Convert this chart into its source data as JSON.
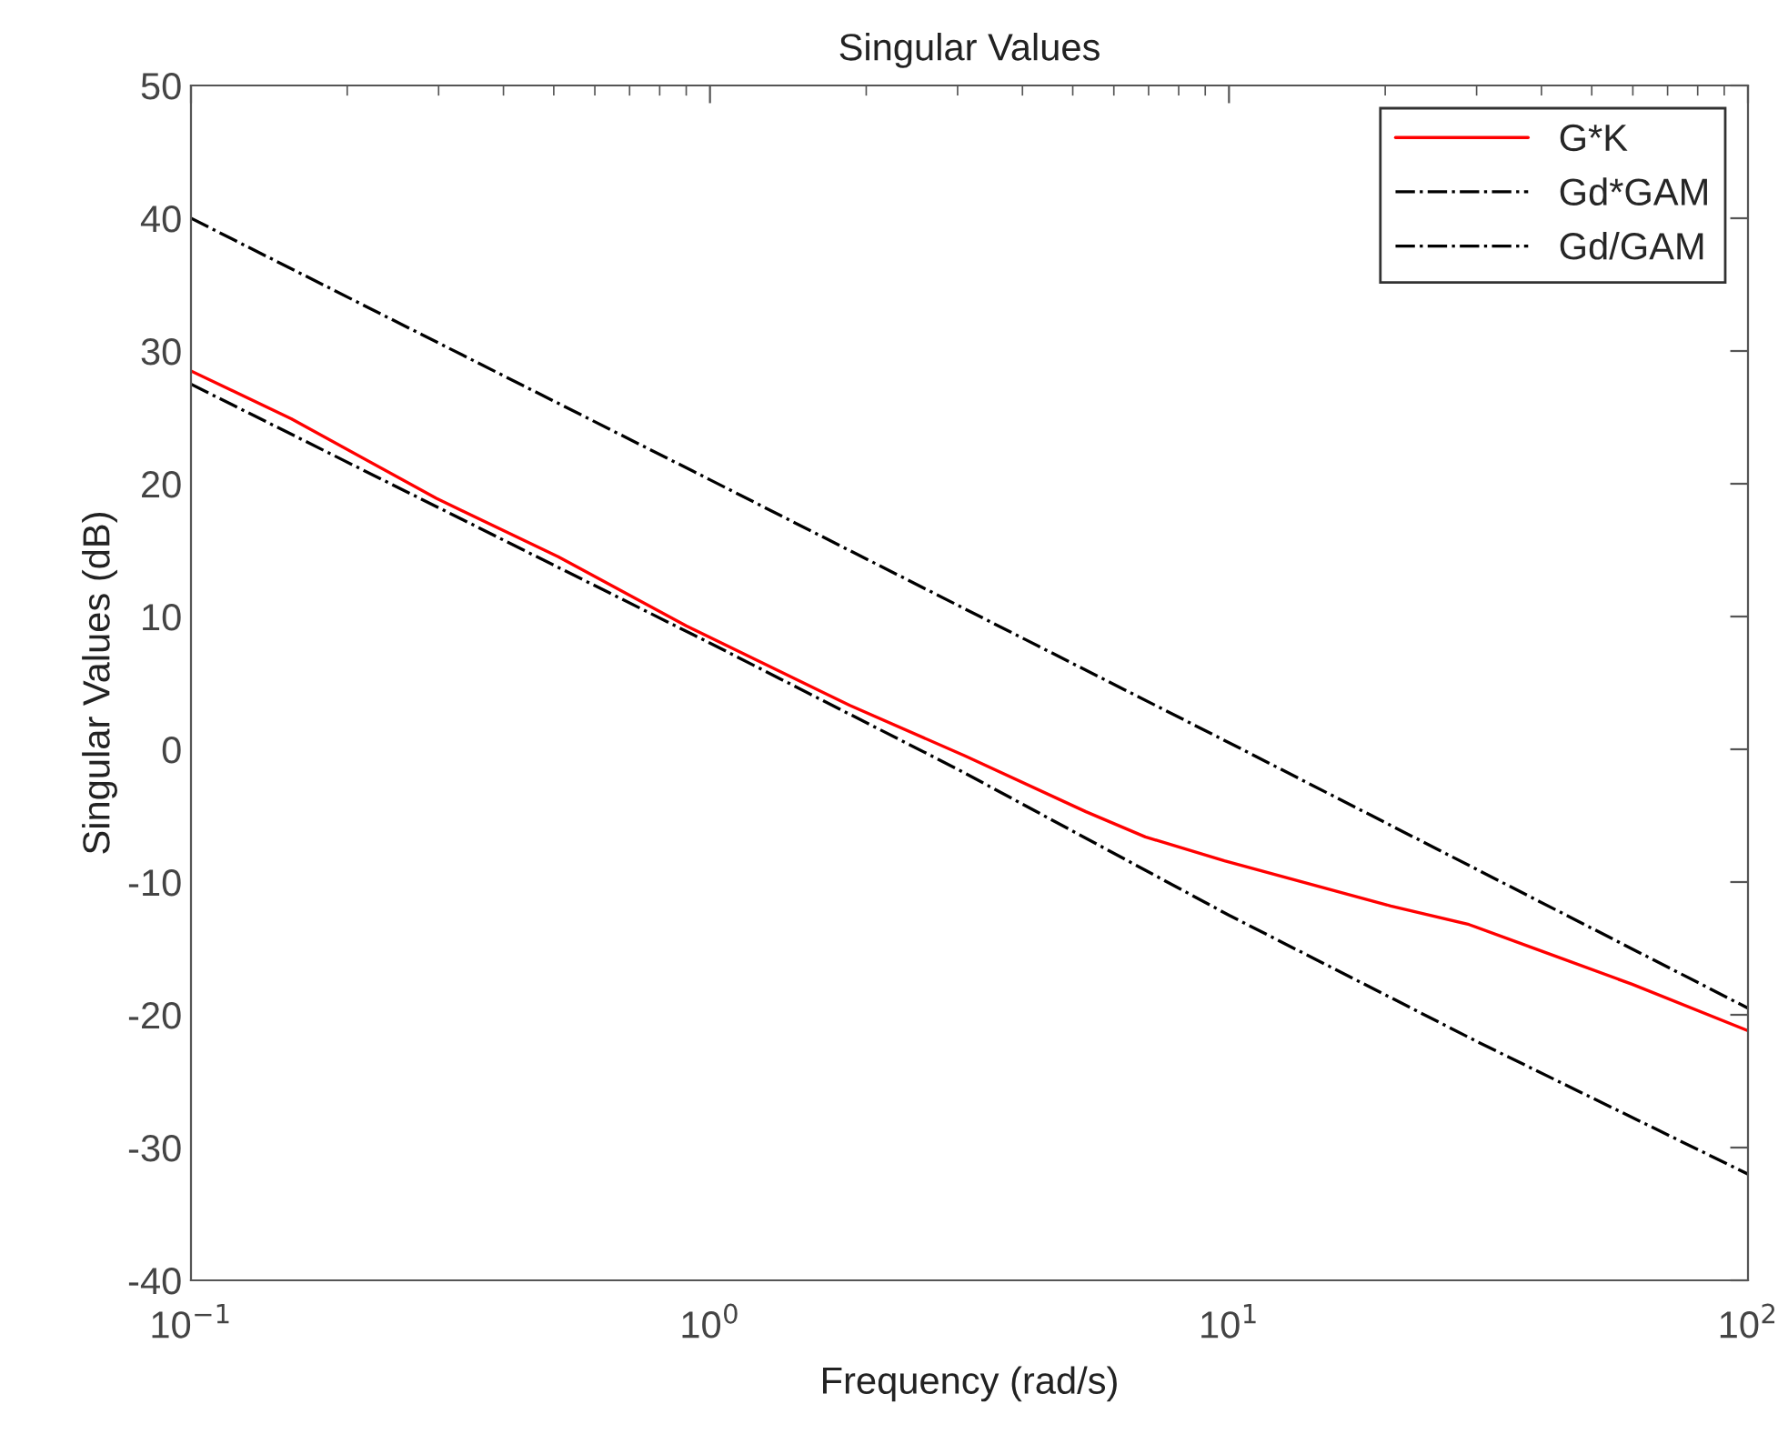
{
  "chart_data": {
    "type": "line",
    "title": "Singular Values",
    "xlabel": "Frequency (rad/s)",
    "ylabel": "Singular Values (dB)",
    "log": "x",
    "grid": false,
    "legend": "top right",
    "xlim": [
      0.1,
      100
    ],
    "xticks": [
      {
        "value": 0.1,
        "label": "10$^{−1}$"
      },
      {
        "value": 1,
        "label": "10$^{0}$"
      },
      {
        "value": 10,
        "label": "10$^{1}$"
      },
      {
        "value": 100,
        "label": "10$^{2}$"
      }
    ],
    "ylim": [
      -40,
      50
    ],
    "yticks": [
      -40,
      -30,
      -20,
      -10,
      0,
      10,
      20,
      30,
      40,
      50
    ],
    "series": [
      {
        "name": "G*K",
        "color": "#ff0000",
        "line_style": "solid",
        "x": [
          0.1,
          0.156,
          0.297,
          0.51,
          0.9,
          1.86,
          3.1,
          5.3,
          6.9,
          9.8,
          20.5,
          29,
          40,
          59.8,
          100
        ],
        "values": [
          28.5,
          24.9,
          18.9,
          14.5,
          9.3,
          3.3,
          -0.5,
          -4.7,
          -6.6,
          -8.4,
          -11.8,
          -13.2,
          -15.2,
          -17.7,
          -21.2
        ]
      },
      {
        "name": "Gd*GAM",
        "color": "#000000",
        "line_style": "dashdot",
        "x": [
          0.1,
          1,
          10,
          100
        ],
        "values": [
          40,
          20.3,
          0.5,
          -19.5
        ]
      },
      {
        "name": "Gd/GAM",
        "color": "#000000",
        "line_style": "dashdot",
        "x": [
          0.1,
          1,
          3,
          10,
          30,
          100
        ],
        "values": [
          27.5,
          8,
          -1.5,
          -12.5,
          -22,
          -32
        ]
      }
    ]
  }
}
